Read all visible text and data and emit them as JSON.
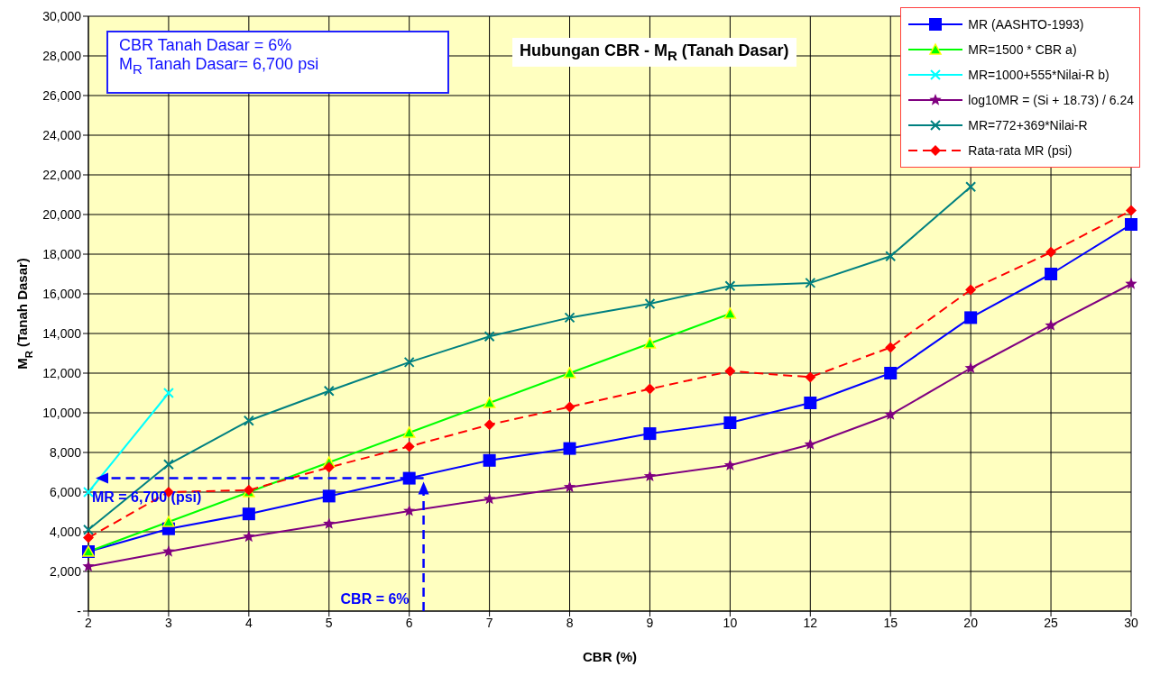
{
  "chart_data": {
    "type": "line",
    "title": "Hubungan CBR - M$_{R}$ (Tanah Dasar)",
    "xlabel": "CBR (%)",
    "ylabel": "M$_{R}$ (Tanah Dasar)",
    "categories": [
      "2",
      "3",
      "4",
      "5",
      "6",
      "7",
      "8",
      "9",
      "10",
      "12",
      "15",
      "20",
      "25",
      "30"
    ],
    "series": [
      {
        "name": "MR (AASHTO-1993)",
        "color": "#0000ff",
        "marker": "square",
        "values": [
          3000,
          4150,
          4900,
          5800,
          6700,
          7600,
          8200,
          8950,
          9500,
          10500,
          12000,
          14800,
          17000,
          19500
        ]
      },
      {
        "name": "MR=1500 * CBR a)",
        "color": "#00ff00",
        "marker": "triangle",
        "values": [
          3000,
          4500,
          6000,
          7500,
          9000,
          10500,
          12000,
          13500,
          15000,
          null,
          null,
          null,
          null,
          null
        ]
      },
      {
        "name": "MR=1000+555*Nilai-R b)",
        "color": "#00ffff",
        "marker": "cross",
        "values": [
          6000,
          11000,
          null,
          null,
          null,
          null,
          null,
          null,
          null,
          null,
          null,
          null,
          null,
          null
        ]
      },
      {
        "name": "log10MR = (Si + 18.73) / 6.24",
        "color": "#800080",
        "marker": "star",
        "values": [
          2250,
          3000,
          3750,
          4400,
          5050,
          5650,
          6250,
          6800,
          7350,
          8400,
          9900,
          12250,
          14400,
          16500
        ]
      },
      {
        "name": "MR=772+369*Nilai-R",
        "color": "#008080",
        "marker": "cross",
        "values": [
          4100,
          7400,
          9600,
          11100,
          12550,
          13850,
          14800,
          15500,
          16400,
          16550,
          17900,
          21400,
          null,
          null
        ]
      },
      {
        "name": "Rata-rata MR (psi)",
        "color": "#ff0000",
        "marker": "diamond",
        "line_style": "dashed",
        "values": [
          3700,
          6000,
          6100,
          7250,
          8300,
          9400,
          10300,
          11200,
          12100,
          11800,
          13300,
          16200,
          18100,
          20200
        ]
      }
    ],
    "ylim": [
      0,
      30000
    ],
    "yticks": [
      {
        "value": 0,
        "label": "-"
      },
      {
        "value": 2000,
        "label": "2,000"
      },
      {
        "value": 4000,
        "label": "4,000"
      },
      {
        "value": 6000,
        "label": "6,000"
      },
      {
        "value": 8000,
        "label": "8,000"
      },
      {
        "value": 10000,
        "label": "10,000"
      },
      {
        "value": 12000,
        "label": "12,000"
      },
      {
        "value": 14000,
        "label": "14,000"
      },
      {
        "value": 16000,
        "label": "16,000"
      },
      {
        "value": 18000,
        "label": "18,000"
      },
      {
        "value": 20000,
        "label": "20,000"
      },
      {
        "value": 22000,
        "label": "22,000"
      },
      {
        "value": 24000,
        "label": "24,000"
      },
      {
        "value": 26000,
        "label": "26,000"
      },
      {
        "value": 28000,
        "label": "28,000"
      },
      {
        "value": 30000,
        "label": "30,000"
      }
    ],
    "ref_lines": [
      {
        "axis": "y",
        "value": 6700,
        "label": "MR = 6,700 (psi)",
        "color": "#0000ff",
        "line_style": "dashed"
      },
      {
        "axis": "x",
        "value": "6",
        "label": "CBR = 6%",
        "color": "#0000ff",
        "line_style": "dashed"
      }
    ],
    "annotations": [
      "CBR Tanah Dasar = 6%",
      "M$_{R}$ Tanah Dasar= 6,700 psi"
    ],
    "grid": true,
    "legend": "top right"
  }
}
